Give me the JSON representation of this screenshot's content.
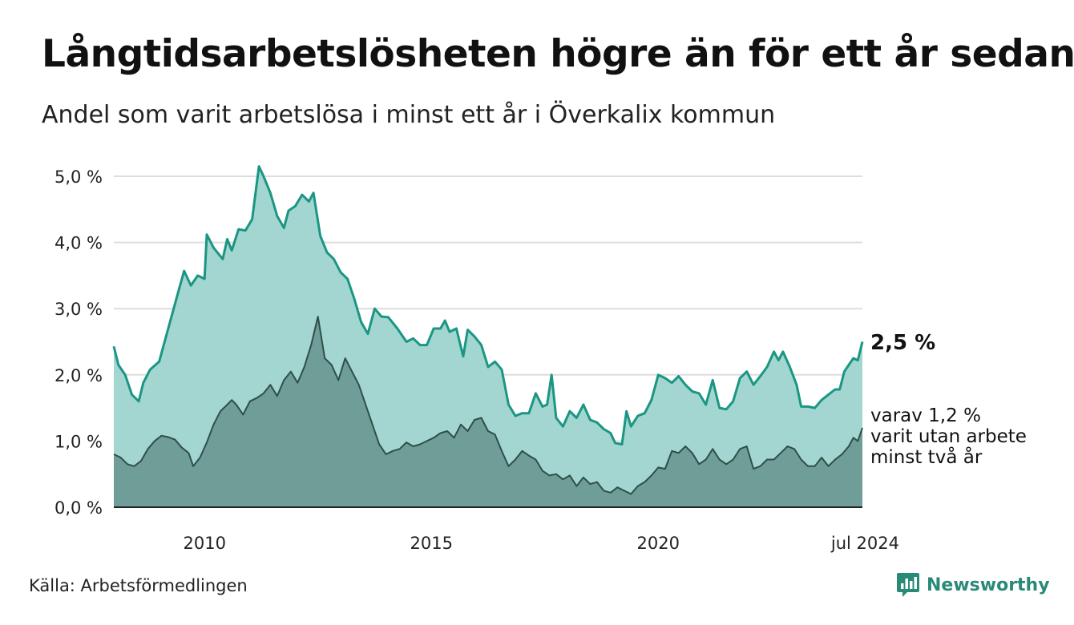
{
  "title": "Långtidsarbetslösheten högre än för ett år sedan",
  "subtitle": "Andel som varit arbetslösa i minst ett år i Överkalix kommun",
  "source": "Källa: Arbetsförmedlingen",
  "brand": "Newsworthy",
  "end_label_main": "2,5 %",
  "end_label_sub": [
    "varav 1,2 %",
    "varit utan arbete",
    "minst två år"
  ],
  "colors": {
    "main_line": "#1a9683",
    "main_fill": "#a3d6d1",
    "sub_line": "#2f4f48",
    "sub_fill": "#6f9d97",
    "grid": "#dddddd",
    "brand": "#2a8a78"
  },
  "chart_data": {
    "type": "area",
    "x_label": "",
    "y_label": "",
    "ylim": [
      0,
      5.2
    ],
    "xlim": [
      2008.0,
      2024.5
    ],
    "y_ticks": [
      {
        "value": 0,
        "label": "0,0 %"
      },
      {
        "value": 1,
        "label": "1,0 %"
      },
      {
        "value": 2,
        "label": "2,0 %"
      },
      {
        "value": 3,
        "label": "3,0 %"
      },
      {
        "value": 4,
        "label": "4,0 %"
      },
      {
        "value": 5,
        "label": "5,0 %"
      }
    ],
    "x_ticks": [
      {
        "value": 2010,
        "label": "2010"
      },
      {
        "value": 2015,
        "label": "2015"
      },
      {
        "value": 2020,
        "label": "2020"
      },
      {
        "value": 2024.5,
        "label": "jul 2024"
      }
    ],
    "series": [
      {
        "name": "Arbetslösa minst ett år",
        "points": [
          [
            2008.0,
            2.43
          ],
          [
            2008.1,
            2.15
          ],
          [
            2008.25,
            2.0
          ],
          [
            2008.4,
            1.7
          ],
          [
            2008.55,
            1.6
          ],
          [
            2008.65,
            1.88
          ],
          [
            2008.8,
            2.08
          ],
          [
            2009.0,
            2.2
          ],
          [
            2009.2,
            2.7
          ],
          [
            2009.4,
            3.2
          ],
          [
            2009.55,
            3.57
          ],
          [
            2009.7,
            3.35
          ],
          [
            2009.85,
            3.5
          ],
          [
            2010.0,
            3.45
          ],
          [
            2010.05,
            4.12
          ],
          [
            2010.2,
            3.92
          ],
          [
            2010.4,
            3.75
          ],
          [
            2010.5,
            4.05
          ],
          [
            2010.6,
            3.88
          ],
          [
            2010.75,
            4.2
          ],
          [
            2010.9,
            4.18
          ],
          [
            2011.05,
            4.35
          ],
          [
            2011.2,
            5.15
          ],
          [
            2011.3,
            5.0
          ],
          [
            2011.45,
            4.75
          ],
          [
            2011.6,
            4.4
          ],
          [
            2011.75,
            4.22
          ],
          [
            2011.85,
            4.48
          ],
          [
            2012.0,
            4.55
          ],
          [
            2012.15,
            4.72
          ],
          [
            2012.3,
            4.62
          ],
          [
            2012.4,
            4.75
          ],
          [
            2012.55,
            4.1
          ],
          [
            2012.7,
            3.85
          ],
          [
            2012.85,
            3.75
          ],
          [
            2013.0,
            3.55
          ],
          [
            2013.15,
            3.45
          ],
          [
            2013.3,
            3.15
          ],
          [
            2013.45,
            2.8
          ],
          [
            2013.6,
            2.62
          ],
          [
            2013.75,
            3.0
          ],
          [
            2013.9,
            2.88
          ],
          [
            2014.05,
            2.87
          ],
          [
            2014.25,
            2.7
          ],
          [
            2014.45,
            2.5
          ],
          [
            2014.6,
            2.55
          ],
          [
            2014.75,
            2.45
          ],
          [
            2014.9,
            2.45
          ],
          [
            2015.05,
            2.7
          ],
          [
            2015.2,
            2.7
          ],
          [
            2015.3,
            2.82
          ],
          [
            2015.4,
            2.65
          ],
          [
            2015.55,
            2.7
          ],
          [
            2015.7,
            2.28
          ],
          [
            2015.8,
            2.68
          ],
          [
            2015.95,
            2.58
          ],
          [
            2016.1,
            2.45
          ],
          [
            2016.25,
            2.12
          ],
          [
            2016.4,
            2.2
          ],
          [
            2016.55,
            2.08
          ],
          [
            2016.7,
            1.55
          ],
          [
            2016.85,
            1.38
          ],
          [
            2017.0,
            1.42
          ],
          [
            2017.15,
            1.42
          ],
          [
            2017.3,
            1.72
          ],
          [
            2017.45,
            1.52
          ],
          [
            2017.55,
            1.55
          ],
          [
            2017.65,
            2.0
          ],
          [
            2017.75,
            1.35
          ],
          [
            2017.9,
            1.22
          ],
          [
            2018.05,
            1.45
          ],
          [
            2018.2,
            1.35
          ],
          [
            2018.35,
            1.55
          ],
          [
            2018.5,
            1.32
          ],
          [
            2018.65,
            1.28
          ],
          [
            2018.8,
            1.18
          ],
          [
            2018.95,
            1.12
          ],
          [
            2019.05,
            0.97
          ],
          [
            2019.2,
            0.95
          ],
          [
            2019.3,
            1.45
          ],
          [
            2019.4,
            1.22
          ],
          [
            2019.55,
            1.38
          ],
          [
            2019.7,
            1.42
          ],
          [
            2019.85,
            1.62
          ],
          [
            2020.0,
            2.0
          ],
          [
            2020.15,
            1.95
          ],
          [
            2020.3,
            1.88
          ],
          [
            2020.45,
            1.98
          ],
          [
            2020.6,
            1.85
          ],
          [
            2020.75,
            1.75
          ],
          [
            2020.9,
            1.72
          ],
          [
            2021.05,
            1.55
          ],
          [
            2021.2,
            1.92
          ],
          [
            2021.35,
            1.5
          ],
          [
            2021.5,
            1.48
          ],
          [
            2021.65,
            1.6
          ],
          [
            2021.8,
            1.95
          ],
          [
            2021.95,
            2.05
          ],
          [
            2022.1,
            1.85
          ],
          [
            2022.25,
            1.98
          ],
          [
            2022.4,
            2.12
          ],
          [
            2022.55,
            2.35
          ],
          [
            2022.65,
            2.22
          ],
          [
            2022.75,
            2.35
          ],
          [
            2022.9,
            2.12
          ],
          [
            2023.05,
            1.85
          ],
          [
            2023.15,
            1.52
          ],
          [
            2023.3,
            1.52
          ],
          [
            2023.45,
            1.5
          ],
          [
            2023.6,
            1.62
          ],
          [
            2023.75,
            1.7
          ],
          [
            2023.9,
            1.78
          ],
          [
            2024.0,
            1.78
          ],
          [
            2024.1,
            2.05
          ],
          [
            2024.2,
            2.15
          ],
          [
            2024.3,
            2.25
          ],
          [
            2024.4,
            2.22
          ],
          [
            2024.5,
            2.5
          ]
        ]
      },
      {
        "name": "varav minst två år",
        "points": [
          [
            2008.0,
            0.8
          ],
          [
            2008.15,
            0.75
          ],
          [
            2008.3,
            0.65
          ],
          [
            2008.45,
            0.62
          ],
          [
            2008.6,
            0.7
          ],
          [
            2008.75,
            0.88
          ],
          [
            2008.9,
            1.0
          ],
          [
            2009.05,
            1.08
          ],
          [
            2009.2,
            1.06
          ],
          [
            2009.35,
            1.02
          ],
          [
            2009.5,
            0.9
          ],
          [
            2009.65,
            0.82
          ],
          [
            2009.75,
            0.62
          ],
          [
            2009.9,
            0.75
          ],
          [
            2010.05,
            0.98
          ],
          [
            2010.2,
            1.25
          ],
          [
            2010.35,
            1.45
          ],
          [
            2010.5,
            1.55
          ],
          [
            2010.6,
            1.62
          ],
          [
            2010.7,
            1.55
          ],
          [
            2010.85,
            1.4
          ],
          [
            2011.0,
            1.6
          ],
          [
            2011.15,
            1.65
          ],
          [
            2011.3,
            1.72
          ],
          [
            2011.45,
            1.85
          ],
          [
            2011.6,
            1.68
          ],
          [
            2011.75,
            1.92
          ],
          [
            2011.9,
            2.05
          ],
          [
            2012.05,
            1.88
          ],
          [
            2012.2,
            2.12
          ],
          [
            2012.35,
            2.45
          ],
          [
            2012.5,
            2.88
          ],
          [
            2012.65,
            2.25
          ],
          [
            2012.8,
            2.15
          ],
          [
            2012.95,
            1.92
          ],
          [
            2013.1,
            2.25
          ],
          [
            2013.25,
            2.05
          ],
          [
            2013.4,
            1.85
          ],
          [
            2013.55,
            1.55
          ],
          [
            2013.7,
            1.25
          ],
          [
            2013.85,
            0.95
          ],
          [
            2014.0,
            0.8
          ],
          [
            2014.15,
            0.85
          ],
          [
            2014.3,
            0.88
          ],
          [
            2014.45,
            0.98
          ],
          [
            2014.6,
            0.92
          ],
          [
            2014.75,
            0.95
          ],
          [
            2014.9,
            1.0
          ],
          [
            2015.05,
            1.05
          ],
          [
            2015.2,
            1.12
          ],
          [
            2015.35,
            1.15
          ],
          [
            2015.5,
            1.05
          ],
          [
            2015.65,
            1.25
          ],
          [
            2015.8,
            1.15
          ],
          [
            2015.95,
            1.32
          ],
          [
            2016.1,
            1.35
          ],
          [
            2016.25,
            1.15
          ],
          [
            2016.4,
            1.1
          ],
          [
            2016.55,
            0.85
          ],
          [
            2016.7,
            0.62
          ],
          [
            2016.85,
            0.72
          ],
          [
            2017.0,
            0.85
          ],
          [
            2017.15,
            0.78
          ],
          [
            2017.3,
            0.72
          ],
          [
            2017.45,
            0.55
          ],
          [
            2017.6,
            0.48
          ],
          [
            2017.75,
            0.5
          ],
          [
            2017.9,
            0.42
          ],
          [
            2018.05,
            0.48
          ],
          [
            2018.2,
            0.32
          ],
          [
            2018.35,
            0.45
          ],
          [
            2018.5,
            0.35
          ],
          [
            2018.65,
            0.38
          ],
          [
            2018.8,
            0.25
          ],
          [
            2018.95,
            0.22
          ],
          [
            2019.1,
            0.3
          ],
          [
            2019.25,
            0.25
          ],
          [
            2019.4,
            0.2
          ],
          [
            2019.55,
            0.32
          ],
          [
            2019.7,
            0.38
          ],
          [
            2019.85,
            0.48
          ],
          [
            2020.0,
            0.6
          ],
          [
            2020.15,
            0.58
          ],
          [
            2020.3,
            0.85
          ],
          [
            2020.45,
            0.82
          ],
          [
            2020.6,
            0.92
          ],
          [
            2020.75,
            0.82
          ],
          [
            2020.9,
            0.65
          ],
          [
            2021.05,
            0.72
          ],
          [
            2021.2,
            0.88
          ],
          [
            2021.35,
            0.72
          ],
          [
            2021.5,
            0.65
          ],
          [
            2021.65,
            0.72
          ],
          [
            2021.8,
            0.88
          ],
          [
            2021.95,
            0.92
          ],
          [
            2022.1,
            0.58
          ],
          [
            2022.25,
            0.62
          ],
          [
            2022.4,
            0.72
          ],
          [
            2022.55,
            0.72
          ],
          [
            2022.7,
            0.82
          ],
          [
            2022.85,
            0.92
          ],
          [
            2023.0,
            0.88
          ],
          [
            2023.15,
            0.72
          ],
          [
            2023.3,
            0.62
          ],
          [
            2023.45,
            0.62
          ],
          [
            2023.6,
            0.75
          ],
          [
            2023.75,
            0.62
          ],
          [
            2023.9,
            0.72
          ],
          [
            2024.05,
            0.8
          ],
          [
            2024.2,
            0.92
          ],
          [
            2024.3,
            1.05
          ],
          [
            2024.4,
            1.0
          ],
          [
            2024.5,
            1.2
          ]
        ]
      }
    ]
  }
}
